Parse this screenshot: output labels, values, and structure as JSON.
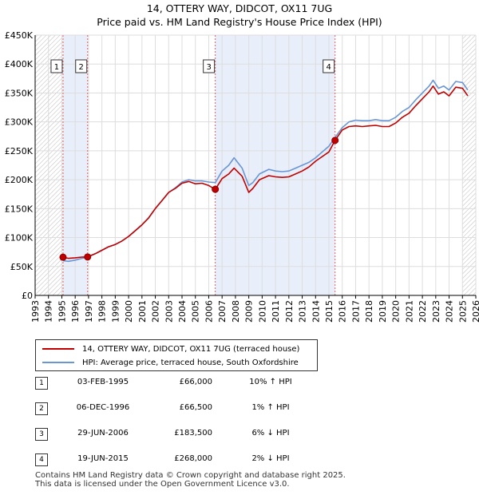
{
  "title": {
    "line1": "14, OTTERY WAY, DIDCOT, OX11 7UG",
    "line2": "Price paid vs. HM Land Registry's House Price Index (HPI)"
  },
  "colors": {
    "property": "#c00000",
    "hpi": "#6a96d4",
    "shade": "#e8eefa",
    "grid": "#dddddd",
    "marker_line": "#e06060"
  },
  "chart_data": {
    "type": "line",
    "title": "14, OTTERY WAY, DIDCOT, OX11 7UG — Price paid vs. HM Land Registry's House Price Index (HPI)",
    "xlabel": "",
    "ylabel": "",
    "xlim": [
      1993,
      2026
    ],
    "ylim": [
      0,
      450000
    ],
    "x_ticks": [
      1993,
      1994,
      1995,
      1996,
      1997,
      1998,
      1999,
      2000,
      2001,
      2002,
      2003,
      2004,
      2005,
      2006,
      2007,
      2008,
      2009,
      2010,
      2011,
      2012,
      2013,
      2014,
      2015,
      2016,
      2017,
      2018,
      2019,
      2020,
      2021,
      2022,
      2023,
      2024,
      2025,
      2026
    ],
    "y_ticks": [
      {
        "value": 0,
        "label": "£0"
      },
      {
        "value": 50000,
        "label": "£50K"
      },
      {
        "value": 100000,
        "label": "£100K"
      },
      {
        "value": 150000,
        "label": "£150K"
      },
      {
        "value": 200000,
        "label": "£200K"
      },
      {
        "value": 250000,
        "label": "£250K"
      },
      {
        "value": 300000,
        "label": "£300K"
      },
      {
        "value": 350000,
        "label": "£350K"
      },
      {
        "value": 400000,
        "label": "£400K"
      },
      {
        "value": 450000,
        "label": "£450K"
      }
    ],
    "grid": true,
    "shaded_ranges": [
      [
        1995.09,
        1996.93
      ],
      [
        2006.49,
        2015.46
      ]
    ],
    "future_hatch_from": 2025.0,
    "series": [
      {
        "name": "14, OTTERY WAY, DIDCOT, OX11 7UG (terraced house)",
        "x": [
          1995.09,
          1995.5,
          1996.0,
          1996.5,
          1996.93,
          1997.5,
          1998.0,
          1998.5,
          1999.0,
          1999.5,
          2000.0,
          2000.5,
          2001.0,
          2001.5,
          2002.0,
          2002.5,
          2003.0,
          2003.5,
          2004.0,
          2004.5,
          2005.0,
          2005.5,
          2006.0,
          2006.49,
          2007.0,
          2007.5,
          2007.9,
          2008.5,
          2009.0,
          2009.3,
          2009.8,
          2010.5,
          2011.0,
          2011.5,
          2012.0,
          2012.5,
          2013.0,
          2013.5,
          2014.0,
          2014.5,
          2015.0,
          2015.46,
          2016.0,
          2016.5,
          2017.0,
          2017.5,
          2018.0,
          2018.5,
          2019.0,
          2019.5,
          2020.0,
          2020.5,
          2021.0,
          2021.5,
          2022.0,
          2022.5,
          2022.8,
          2023.2,
          2023.6,
          2024.0,
          2024.5,
          2025.0,
          2025.4
        ],
        "values": [
          66000,
          64000,
          65000,
          66200,
          66500,
          72000,
          78000,
          84000,
          88000,
          94000,
          102000,
          112000,
          122000,
          134000,
          150000,
          164000,
          178000,
          185000,
          194000,
          197000,
          193000,
          194000,
          190000,
          183500,
          202000,
          210000,
          220000,
          206000,
          178000,
          185000,
          200000,
          207000,
          205000,
          204000,
          205000,
          210000,
          215000,
          222000,
          232000,
          240000,
          248000,
          268000,
          286000,
          292000,
          293000,
          292000,
          293000,
          294000,
          292000,
          292000,
          298000,
          308000,
          315000,
          328000,
          340000,
          352000,
          362000,
          348000,
          352000,
          345000,
          360000,
          358000,
          345000
        ]
      },
      {
        "name": "HPI: Average price, terraced house, South Oxfordshire",
        "x": [
          1995.09,
          1995.5,
          1996.0,
          1996.5,
          1996.93,
          1997.5,
          1998.0,
          1998.5,
          1999.0,
          1999.5,
          2000.0,
          2000.5,
          2001.0,
          2001.5,
          2002.0,
          2002.5,
          2003.0,
          2003.5,
          2004.0,
          2004.5,
          2005.0,
          2005.5,
          2006.0,
          2006.49,
          2007.0,
          2007.5,
          2007.9,
          2008.5,
          2009.0,
          2009.3,
          2009.8,
          2010.5,
          2011.0,
          2011.5,
          2012.0,
          2012.5,
          2013.0,
          2013.5,
          2014.0,
          2014.5,
          2015.0,
          2015.46,
          2016.0,
          2016.5,
          2017.0,
          2017.5,
          2018.0,
          2018.5,
          2019.0,
          2019.5,
          2020.0,
          2020.5,
          2021.0,
          2021.5,
          2022.0,
          2022.5,
          2022.8,
          2023.2,
          2023.6,
          2024.0,
          2024.5,
          2025.0,
          2025.4
        ],
        "values": [
          60000,
          59000,
          61000,
          64000,
          66000,
          72000,
          78000,
          84000,
          88000,
          94000,
          102000,
          112000,
          122000,
          134000,
          150000,
          164000,
          178000,
          186000,
          196000,
          200000,
          198000,
          198000,
          196000,
          195000,
          215000,
          225000,
          238000,
          220000,
          190000,
          195000,
          210000,
          218000,
          215000,
          214000,
          215000,
          220000,
          225000,
          230000,
          238000,
          248000,
          258000,
          273000,
          290000,
          300000,
          303000,
          302000,
          302000,
          304000,
          302000,
          302000,
          308000,
          318000,
          325000,
          338000,
          350000,
          362000,
          372000,
          358000,
          362000,
          355000,
          370000,
          368000,
          355000
        ]
      }
    ],
    "sale_markers": [
      {
        "label": "1",
        "x": 1995.09,
        "value": 66000
      },
      {
        "label": "2",
        "x": 1996.93,
        "value": 66500
      },
      {
        "label": "3",
        "x": 2006.49,
        "value": 183500
      },
      {
        "label": "4",
        "x": 2015.46,
        "value": 268000
      }
    ]
  },
  "legend": {
    "property": "14, OTTERY WAY, DIDCOT, OX11 7UG (terraced house)",
    "hpi": "HPI: Average price, terraced house, South Oxfordshire"
  },
  "transactions": [
    {
      "num": "1",
      "date": "03-FEB-1995",
      "price": "£66,000",
      "hpi": "10% ↑ HPI"
    },
    {
      "num": "2",
      "date": "06-DEC-1996",
      "price": "£66,500",
      "hpi": "1% ↑ HPI"
    },
    {
      "num": "3",
      "date": "29-JUN-2006",
      "price": "£183,500",
      "hpi": "6% ↓ HPI"
    },
    {
      "num": "4",
      "date": "19-JUN-2015",
      "price": "£268,000",
      "hpi": "2% ↓ HPI"
    }
  ],
  "footer": {
    "line1": "Contains HM Land Registry data © Crown copyright and database right 2025.",
    "line2": "This data is licensed under the Open Government Licence v3.0."
  }
}
